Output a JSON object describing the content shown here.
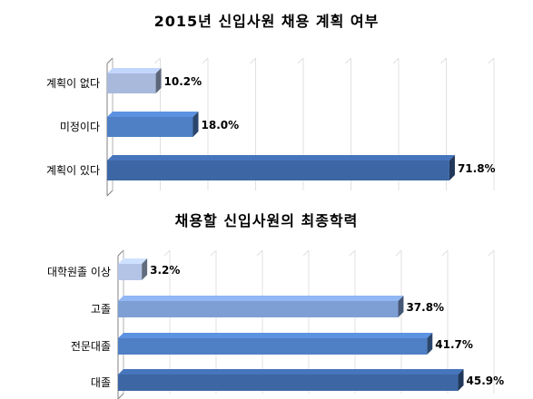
{
  "chart_data": [
    {
      "type": "bar",
      "orientation": "horizontal",
      "title": "2015년 신입사원 채용 계획 여부",
      "categories": [
        "계획이 없다",
        "미정이다",
        "계획이 있다"
      ],
      "values": [
        10.2,
        18.0,
        71.8
      ],
      "value_labels": [
        "10.2%",
        "18.0%",
        "71.8%"
      ],
      "xlim": [
        0,
        80
      ],
      "grid": true,
      "colors": [
        "#a9b9dc",
        "#4f7fc4",
        "#3d66a4"
      ]
    },
    {
      "type": "bar",
      "orientation": "horizontal",
      "title": "채용할 신입사원의 최종학력",
      "categories": [
        "대학원졸 이상",
        "고졸",
        "전문대졸",
        "대졸"
      ],
      "values": [
        3.2,
        37.8,
        41.7,
        45.9
      ],
      "value_labels": [
        "3.2%",
        "37.8%",
        "41.7%",
        "45.9%"
      ],
      "xlim": [
        0,
        50
      ],
      "grid": true,
      "colors": [
        "#b3c4e6",
        "#7e9fd4",
        "#4f7fc4",
        "#3d66a4"
      ]
    }
  ]
}
